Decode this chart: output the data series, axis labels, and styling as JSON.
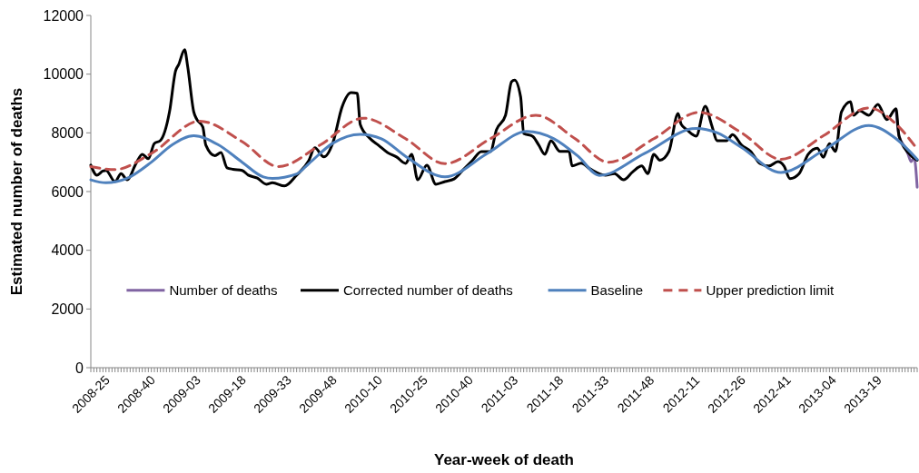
{
  "chart_data": {
    "type": "line",
    "xlabel": "Year-week of death",
    "ylabel": "Estimated number of deaths",
    "categories": [
      "2008-25",
      null,
      null,
      null,
      null,
      null,
      null,
      null,
      null,
      null,
      null,
      null,
      null,
      null,
      null,
      "2008-40",
      null,
      null,
      null,
      null,
      null,
      null,
      null,
      null,
      null,
      null,
      null,
      null,
      null,
      null,
      "2009-03",
      null,
      null,
      null,
      null,
      null,
      null,
      null,
      null,
      null,
      null,
      null,
      null,
      null,
      null,
      "2009-18",
      null,
      null,
      null,
      null,
      null,
      null,
      null,
      null,
      null,
      null,
      null,
      null,
      null,
      null,
      "2009-33",
      null,
      null,
      null,
      null,
      null,
      null,
      null,
      null,
      null,
      null,
      null,
      null,
      null,
      null,
      "2009-48",
      null,
      null,
      null,
      null,
      null,
      null,
      null,
      null,
      null,
      null,
      null,
      null,
      null,
      null,
      "2010-10",
      null,
      null,
      null,
      null,
      null,
      null,
      null,
      null,
      null,
      null,
      null,
      null,
      null,
      null,
      "2010-25",
      null,
      null,
      null,
      null,
      null,
      null,
      null,
      null,
      null,
      null,
      null,
      null,
      null,
      null,
      "2010-40",
      null,
      null,
      null,
      null,
      null,
      null,
      null,
      null,
      null,
      null,
      null,
      null,
      null,
      null,
      "2011-03",
      null,
      null,
      null,
      null,
      null,
      null,
      null,
      null,
      null,
      null,
      null,
      null,
      null,
      null,
      "2011-18",
      null,
      null,
      null,
      null,
      null,
      null,
      null,
      null,
      null,
      null,
      null,
      null,
      null,
      null,
      "2011-33",
      null,
      null,
      null,
      null,
      null,
      null,
      null,
      null,
      null,
      null,
      null,
      null,
      null,
      null,
      "2011-48",
      null,
      null,
      null,
      null,
      null,
      null,
      null,
      null,
      null,
      null,
      null,
      null,
      null,
      null,
      "2012-11",
      null,
      null,
      null,
      null,
      null,
      null,
      null,
      null,
      null,
      null,
      null,
      null,
      null,
      null,
      "2012-26",
      null,
      null,
      null,
      null,
      null,
      null,
      null,
      null,
      null,
      null,
      null,
      null,
      null,
      null,
      "2012-41",
      null,
      null,
      null,
      null,
      null,
      null,
      null,
      null,
      null,
      null,
      null,
      null,
      null,
      null,
      "2013-04",
      null,
      null,
      null,
      null,
      null,
      null,
      null,
      null,
      null,
      null,
      null,
      null,
      null,
      null,
      "2013-19",
      null,
      null,
      null,
      null,
      null,
      null,
      null,
      null,
      null,
      null,
      null,
      null,
      null,
      null,
      null,
      null,
      null,
      null
    ],
    "ylim": [
      0,
      12000
    ],
    "yticks": [
      0,
      2000,
      4000,
      6000,
      8000,
      10000,
      12000
    ],
    "legend": "bottom",
    "line_style": "solid",
    "series": [
      {
        "name": "Number of deaths",
        "color": "#8064a2",
        "values": [
          null,
          null,
          null,
          null,
          null,
          null,
          null,
          null,
          null,
          null,
          null,
          null,
          null,
          null,
          null,
          null,
          null,
          null,
          null,
          null,
          null,
          null,
          null,
          null,
          null,
          null,
          null,
          null,
          null,
          null,
          null,
          null,
          null,
          null,
          null,
          null,
          null,
          null,
          null,
          null,
          null,
          null,
          null,
          null,
          null,
          null,
          null,
          null,
          null,
          null,
          null,
          null,
          null,
          null,
          null,
          null,
          null,
          null,
          null,
          null,
          null,
          null,
          null,
          null,
          null,
          null,
          null,
          null,
          null,
          null,
          null,
          null,
          null,
          null,
          null,
          null,
          null,
          null,
          null,
          null,
          null,
          null,
          null,
          null,
          null,
          null,
          null,
          null,
          null,
          null,
          null,
          null,
          null,
          null,
          null,
          null,
          null,
          null,
          null,
          null,
          null,
          null,
          null,
          null,
          null,
          null,
          null,
          null,
          null,
          null,
          null,
          null,
          null,
          null,
          null,
          null,
          null,
          null,
          null,
          null,
          null,
          null,
          null,
          null,
          null,
          null,
          null,
          null,
          null,
          null,
          null,
          null,
          null,
          null,
          null,
          null,
          null,
          null,
          null,
          null,
          null,
          null,
          null,
          null,
          null,
          null,
          null,
          null,
          null,
          null,
          null,
          null,
          null,
          null,
          null,
          null,
          null,
          null,
          null,
          null,
          null,
          null,
          null,
          null,
          null,
          null,
          null,
          null,
          null,
          null,
          null,
          null,
          null,
          null,
          null,
          null,
          null,
          null,
          null,
          null,
          null,
          null,
          null,
          null,
          null,
          null,
          null,
          null,
          null,
          null,
          null,
          null,
          null,
          null,
          null,
          null,
          null,
          null,
          null,
          null,
          null,
          null,
          null,
          null,
          null,
          null,
          null,
          null,
          null,
          null,
          null,
          null,
          null,
          null,
          null,
          null,
          null,
          null,
          null,
          null,
          null,
          null,
          null,
          null,
          null,
          null,
          null,
          null,
          null,
          null,
          null,
          null,
          null,
          null,
          null,
          null,
          null,
          null,
          null,
          null,
          null,
          null,
          null,
          null,
          null,
          null,
          null,
          null,
          null,
          null,
          null,
          null,
          null,
          null,
          null,
          null,
          null,
          null,
          null,
          null,
          null,
          null,
          null,
          null,
          null,
          null,
          8800,
          7900,
          null,
          7500,
          7270,
          7020,
          7150,
          6150
        ]
      },
      {
        "name": "Corrected number of deaths",
        "color": "#000000",
        "values": [
          6900,
          null,
          6560,
          null,
          6700,
          6720,
          null,
          null,
          6340,
          null,
          6610,
          null,
          6400,
          null,
          null,
          6970,
          null,
          7270,
          null,
          7120,
          null,
          7640,
          null,
          7740,
          null,
          null,
          8720,
          null,
          10110,
          10320,
          null,
          10830,
          10260,
          null,
          8720,
          8460,
          null,
          8200,
          7580,
          null,
          null,
          7220,
          null,
          7330,
          null,
          6810,
          null,
          6760,
          null,
          null,
          6720,
          null,
          6560,
          null,
          null,
          6460,
          null,
          null,
          6250,
          null,
          6300,
          null,
          null,
          null,
          6190,
          null,
          null,
          null,
          6560,
          null,
          null,
          null,
          7050,
          null,
          7490,
          null,
          null,
          7180,
          null,
          null,
          7670,
          null,
          null,
          8880,
          null,
          null,
          9370,
          null,
          9350,
          8290,
          null,
          null,
          7830,
          null,
          null,
          7580,
          null,
          null,
          7330,
          null,
          null,
          7180,
          null,
          null,
          6960,
          null,
          7270,
          null,
          6400,
          null,
          null,
          6900,
          null,
          null,
          6250,
          null,
          null,
          6340,
          null,
          null,
          6430,
          null,
          null,
          6740,
          null,
          null,
          7050,
          null,
          null,
          7360,
          null,
          null,
          7360,
          null,
          8100,
          null,
          null,
          8600,
          null,
          9740,
          9800,
          null,
          9220,
          7980,
          null,
          null,
          7880,
          null,
          7580,
          null,
          7270,
          null,
          7730,
          null,
          null,
          7370,
          null,
          null,
          7370,
          6870,
          null,
          null,
          6970,
          null,
          null,
          6770,
          null,
          null,
          null,
          null,
          6560,
          null,
          null,
          6610,
          null,
          null,
          6400,
          null,
          null,
          6670,
          null,
          null,
          6870,
          null,
          6610,
          null,
          7270,
          null,
          7070,
          null,
          null,
          7370,
          null,
          null,
          8660,
          8300,
          null,
          8100,
          null,
          null,
          7890,
          null,
          null,
          8910,
          null,
          8300,
          null,
          7730,
          null,
          null,
          7730,
          null,
          7940,
          null,
          null,
          7580,
          null,
          null,
          7370,
          null,
          null,
          6960,
          null,
          null,
          6870,
          null,
          null,
          7020,
          null,
          6870,
          null,
          6440,
          null,
          null,
          6610,
          null,
          null,
          7270,
          null,
          null,
          7480,
          null,
          7170,
          null,
          7630,
          null,
          7370,
          null,
          8720,
          null,
          null,
          9060,
          8600,
          null,
          8750,
          null,
          null,
          8600,
          null,
          null,
          8970,
          null,
          null,
          8450,
          null,
          null,
          8820,
          7890,
          null,
          null,
          7330,
          null,
          null,
          7070
        ]
      },
      {
        "name": "Baseline",
        "color": "#4f81bd",
        "values": [
          6400,
          null,
          null,
          null,
          null,
          6300,
          null,
          null,
          null,
          null,
          null,
          null,
          6450,
          null,
          null,
          null,
          null,
          null,
          null,
          null,
          7000,
          null,
          null,
          null,
          null,
          null,
          null,
          7600,
          null,
          null,
          null,
          null,
          null,
          null,
          7900,
          null,
          null,
          null,
          null,
          null,
          null,
          null,
          7600,
          null,
          null,
          null,
          null,
          null,
          null,
          null,
          7000,
          null,
          null,
          null,
          null,
          null,
          null,
          6500,
          null,
          null,
          6450,
          null,
          null,
          null,
          null,
          null,
          null,
          null,
          6600,
          null,
          null,
          null,
          6950,
          null,
          null,
          null,
          null,
          null,
          null,
          null,
          7650,
          null,
          null,
          null,
          null,
          null,
          null,
          null,
          null,
          7950,
          null,
          null,
          null,
          null,
          null,
          null,
          7800,
          null,
          null,
          null,
          null,
          null,
          null,
          null,
          7200,
          null,
          null,
          null,
          null,
          null,
          null,
          null,
          null,
          null,
          null,
          null,
          null,
          6500,
          null,
          null,
          null,
          null,
          null,
          null,
          null,
          null,
          null,
          null,
          null,
          null,
          null,
          7300,
          null,
          null,
          null,
          null,
          null,
          null,
          null,
          null,
          null,
          null,
          null,
          null,
          8050,
          null,
          null,
          null,
          null,
          null,
          null,
          null,
          null,
          7800,
          null,
          null,
          null,
          null,
          null,
          null,
          null,
          7200,
          null,
          null,
          null,
          null,
          null,
          null,
          6550,
          null,
          null,
          null,
          null,
          null,
          null,
          null,
          null,
          null,
          null,
          null,
          null,
          null,
          null,
          7300,
          null,
          null,
          null,
          null,
          null,
          null,
          null,
          null,
          null,
          null,
          null,
          null,
          null,
          null,
          null,
          null,
          8150,
          null,
          null,
          null,
          null,
          null,
          null,
          8000,
          null,
          null,
          null,
          null,
          null,
          null,
          null,
          7500,
          null,
          null,
          null,
          null,
          null,
          null,
          null,
          null,
          null,
          null,
          null,
          null,
          6650,
          null,
          null,
          null,
          null,
          null,
          null,
          null,
          null,
          null,
          null,
          null,
          null,
          null,
          7400,
          null,
          null,
          null,
          null,
          null,
          null,
          null,
          null,
          null,
          null,
          null,
          null,
          null,
          null,
          8250,
          null,
          null,
          null,
          null,
          null,
          null,
          null,
          null,
          7800,
          null,
          null,
          null,
          null,
          null,
          null,
          7100
        ]
      },
      {
        "name": "Upper prediction limit",
        "color": "#c0504d",
        "line_style": "dashed",
        "values": [
          6850,
          null,
          null,
          null,
          null,
          null,
          null,
          null,
          6750,
          null,
          null,
          null,
          null,
          null,
          null,
          null,
          null,
          null,
          null,
          null,
          7300,
          null,
          null,
          null,
          null,
          null,
          null,
          null,
          null,
          null,
          null,
          null,
          null,
          null,
          null,
          null,
          8400,
          null,
          null,
          null,
          null,
          null,
          null,
          null,
          null,
          null,
          null,
          null,
          null,
          null,
          7700,
          null,
          null,
          null,
          null,
          null,
          null,
          null,
          null,
          null,
          null,
          null,
          6850,
          null,
          null,
          null,
          null,
          null,
          null,
          null,
          null,
          null,
          null,
          null,
          null,
          null,
          7600,
          null,
          null,
          null,
          null,
          null,
          null,
          null,
          null,
          null,
          null,
          null,
          null,
          null,
          8500,
          null,
          null,
          null,
          null,
          null,
          null,
          null,
          null,
          null,
          null,
          null,
          null,
          null,
          7800,
          null,
          null,
          null,
          null,
          null,
          null,
          null,
          null,
          null,
          null,
          null,
          null,
          6950,
          null,
          null,
          null,
          null,
          null,
          null,
          null,
          null,
          null,
          null,
          null,
          null,
          null,
          null,
          7800,
          null,
          null,
          null,
          null,
          null,
          null,
          null,
          null,
          null,
          null,
          null,
          null,
          null,
          null,
          8600,
          null,
          null,
          null,
          null,
          null,
          null,
          null,
          null,
          null,
          null,
          null,
          null,
          7800,
          null,
          null,
          null,
          null,
          null,
          null,
          null,
          null,
          null,
          null,
          7000,
          null,
          null,
          null,
          null,
          null,
          null,
          null,
          null,
          null,
          null,
          null,
          null,
          null,
          null,
          7800,
          null,
          null,
          null,
          null,
          null,
          null,
          null,
          null,
          null,
          null,
          null,
          null,
          null,
          null,
          8700,
          null,
          null,
          null,
          null,
          null,
          null,
          null,
          null,
          null,
          null,
          null,
          null,
          null,
          8000,
          null,
          null,
          null,
          null,
          null,
          null,
          null,
          null,
          null,
          null,
          null,
          null,
          7100,
          null,
          null,
          null,
          null,
          null,
          null,
          null,
          null,
          null,
          null,
          null,
          null,
          null,
          7900,
          null,
          null,
          null,
          null,
          null,
          null,
          null,
          null,
          null,
          null,
          null,
          null,
          null,
          null,
          8850,
          null,
          null,
          null,
          null,
          null,
          null,
          null,
          null,
          8300,
          null,
          null,
          null,
          null,
          null,
          null,
          7450
        ]
      }
    ]
  }
}
